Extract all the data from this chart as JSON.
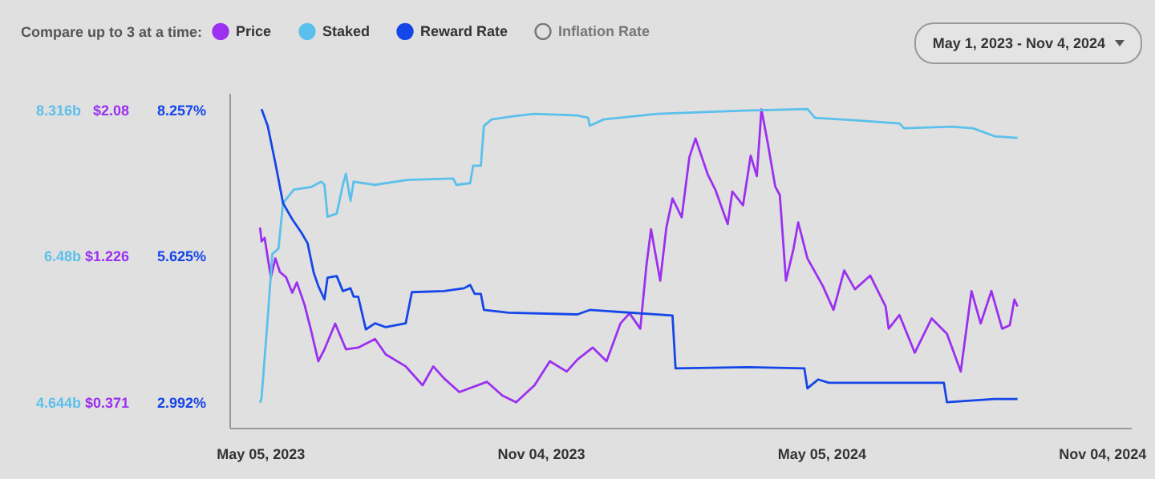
{
  "chart_data": {
    "type": "line",
    "legend_title": "Compare up to 3 at a time:",
    "legend": "top left",
    "annotations": [
      "May 1, 2023 - Nov 4, 2024"
    ],
    "xlim": [
      "2023-04-15",
      "2024-11-23"
    ],
    "xticks": [
      {
        "value": "2023-05-05",
        "label": "May 05, 2023"
      },
      {
        "value": "2023-11-04",
        "label": "Nov 04, 2023"
      },
      {
        "value": "2024-05-05",
        "label": "May 05, 2024"
      },
      {
        "value": "2024-11-04",
        "label": "Nov 04, 2024"
      }
    ],
    "ylim": [
      0.222,
      2.176
    ],
    "yticks": [
      {
        "value": 0.371,
        "label": "$0.371"
      },
      {
        "value": 1.226,
        "label": "$1.226"
      },
      {
        "value": 2.08,
        "label": "$2.08"
      }
    ],
    "y2lim": [
      4.323,
      8.523
    ],
    "y2ticks": [
      {
        "value": 4.644,
        "label": "4.644b"
      },
      {
        "value": 6.48,
        "label": "6.48b"
      },
      {
        "value": 8.316,
        "label": "8.316b"
      }
    ],
    "y3lim": [
      2.532,
      8.553
    ],
    "y3ticks": [
      {
        "value": 2.992,
        "label": "2.992%"
      },
      {
        "value": 5.625,
        "label": "5.625%"
      },
      {
        "value": 8.257,
        "label": "8.257%"
      }
    ],
    "series": [
      {
        "name": "Price",
        "color": "#9b30f0",
        "axis": "y",
        "x": [
          "2023-05-05",
          "2023-05-06",
          "2023-05-08",
          "2023-05-12",
          "2023-05-15",
          "2023-05-18",
          "2023-05-22",
          "2023-05-26",
          "2023-05-29",
          "2023-06-03",
          "2023-06-07",
          "2023-06-12",
          "2023-06-16",
          "2023-06-23",
          "2023-06-30",
          "2023-07-08",
          "2023-07-19",
          "2023-07-26",
          "2023-08-08",
          "2023-08-19",
          "2023-08-26",
          "2023-09-02",
          "2023-09-12",
          "2023-09-30",
          "2023-10-10",
          "2023-10-19",
          "2023-10-31",
          "2023-11-10",
          "2023-11-21",
          "2023-11-28",
          "2023-12-08",
          "2023-12-17",
          "2023-12-26",
          "2024-01-01",
          "2024-01-08",
          "2024-01-12",
          "2024-01-15",
          "2024-01-21",
          "2024-01-25",
          "2024-01-29",
          "2024-02-04",
          "2024-02-09",
          "2024-02-13",
          "2024-02-21",
          "2024-02-26",
          "2024-03-05",
          "2024-03-08",
          "2024-03-15",
          "2024-03-20",
          "2024-03-24",
          "2024-03-27",
          "2024-03-31",
          "2024-04-05",
          "2024-04-08",
          "2024-04-12",
          "2024-04-17",
          "2024-04-20",
          "2024-04-26",
          "2024-05-06",
          "2024-05-13",
          "2024-05-20",
          "2024-05-27",
          "2024-06-06",
          "2024-06-16",
          "2024-06-18",
          "2024-06-25",
          "2024-07-05",
          "2024-07-16",
          "2024-07-26",
          "2024-08-04",
          "2024-08-11",
          "2024-08-17",
          "2024-08-24",
          "2024-08-31",
          "2024-09-05",
          "2024-09-08",
          "2024-09-10"
        ],
        "values": [
          1.39,
          1.31,
          1.33,
          1.1,
          1.21,
          1.13,
          1.1,
          1.01,
          1.07,
          0.94,
          0.8,
          0.61,
          0.68,
          0.83,
          0.68,
          0.69,
          0.74,
          0.65,
          0.58,
          0.47,
          0.58,
          0.51,
          0.43,
          0.49,
          0.41,
          0.37,
          0.47,
          0.61,
          0.55,
          0.62,
          0.69,
          0.61,
          0.83,
          0.89,
          0.8,
          1.17,
          1.38,
          1.08,
          1.39,
          1.56,
          1.45,
          1.8,
          1.91,
          1.7,
          1.61,
          1.41,
          1.6,
          1.52,
          1.81,
          1.69,
          2.08,
          1.89,
          1.63,
          1.58,
          1.08,
          1.27,
          1.42,
          1.21,
          1.05,
          0.91,
          1.14,
          1.03,
          1.11,
          0.93,
          0.8,
          0.88,
          0.66,
          0.86,
          0.77,
          0.55,
          1.02,
          0.83,
          1.02,
          0.8,
          0.82,
          0.97,
          0.93
        ]
      },
      {
        "name": "Staked",
        "color": "#5bc0eb",
        "axis": "y2",
        "x": [
          "2023-05-05",
          "2023-05-06",
          "2023-05-10",
          "2023-05-13",
          "2023-05-17",
          "2023-05-20",
          "2023-05-27",
          "2023-06-07",
          "2023-06-14",
          "2023-06-16",
          "2023-06-18",
          "2023-06-24",
          "2023-06-28",
          "2023-06-30",
          "2023-07-03",
          "2023-07-05",
          "2023-07-19",
          "2023-08-08",
          "2023-09-08",
          "2023-09-10",
          "2023-09-19",
          "2023-09-21",
          "2023-09-26",
          "2023-09-28",
          "2023-10-03",
          "2023-10-17",
          "2023-10-31",
          "2023-11-28",
          "2023-12-05",
          "2023-12-06",
          "2023-12-15",
          "2024-01-19",
          "2024-03-15",
          "2024-04-26",
          "2024-05-01",
          "2024-05-27",
          "2024-06-25",
          "2024-06-28",
          "2024-07-29",
          "2024-08-12",
          "2024-08-26",
          "2024-09-10"
        ],
        "values": [
          4.64,
          4.7,
          5.7,
          6.5,
          6.57,
          7.14,
          7.31,
          7.34,
          7.41,
          7.37,
          6.97,
          7.01,
          7.37,
          7.51,
          7.17,
          7.41,
          7.37,
          7.43,
          7.45,
          7.37,
          7.39,
          7.61,
          7.61,
          8.11,
          8.19,
          8.23,
          8.26,
          8.24,
          8.21,
          8.11,
          8.19,
          8.26,
          8.3,
          8.32,
          8.21,
          8.18,
          8.14,
          8.08,
          8.1,
          8.08,
          7.98,
          7.96
        ]
      },
      {
        "name": "Reward Rate",
        "color": "#1546e8",
        "axis": "y3",
        "x": [
          "2023-05-06",
          "2023-05-10",
          "2023-05-15",
          "2023-05-20",
          "2023-05-26",
          "2023-06-01",
          "2023-06-05",
          "2023-06-09",
          "2023-06-12",
          "2023-06-16",
          "2023-06-18",
          "2023-06-24",
          "2023-06-28",
          "2023-07-03",
          "2023-07-05",
          "2023-07-08",
          "2023-07-13",
          "2023-07-19",
          "2023-07-26",
          "2023-08-08",
          "2023-08-12",
          "2023-09-02",
          "2023-09-15",
          "2023-09-19",
          "2023-09-22",
          "2023-09-26",
          "2023-09-28",
          "2023-10-14",
          "2023-11-28",
          "2023-12-06",
          "2024-01-29",
          "2024-01-31",
          "2024-03-18",
          "2024-04-24",
          "2024-04-26",
          "2024-05-03",
          "2024-05-10",
          "2024-07-24",
          "2024-07-26",
          "2024-08-26",
          "2024-09-10"
        ],
        "values": [
          8.26,
          7.96,
          7.29,
          6.57,
          6.28,
          6.04,
          5.85,
          5.32,
          5.08,
          4.84,
          5.23,
          5.26,
          4.99,
          5.04,
          4.89,
          4.89,
          4.3,
          4.41,
          4.34,
          4.41,
          4.97,
          4.99,
          5.04,
          5.1,
          4.94,
          4.94,
          4.65,
          4.6,
          4.57,
          4.65,
          4.55,
          3.6,
          3.62,
          3.6,
          3.24,
          3.4,
          3.34,
          3.34,
          2.99,
          3.05,
          3.05
        ]
      },
      {
        "name": "Inflation Rate",
        "color": "#777777"
      }
    ]
  }
}
